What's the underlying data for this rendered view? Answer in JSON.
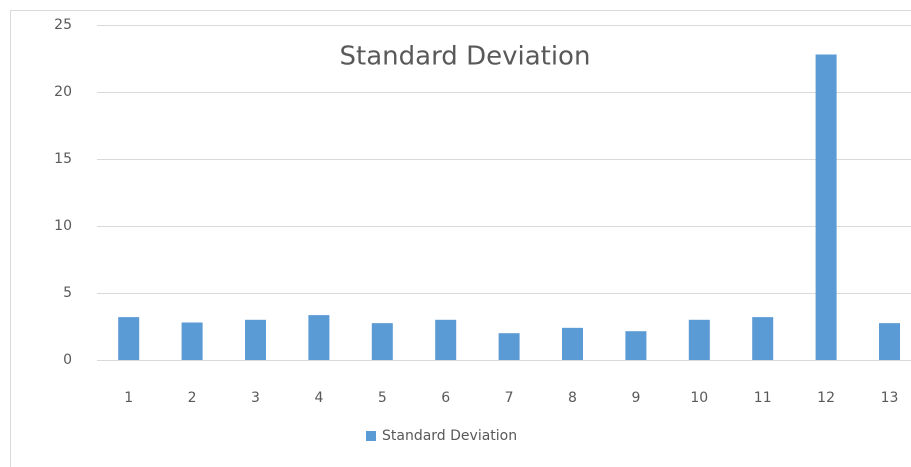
{
  "chart_data": {
    "type": "bar",
    "title": "Standard Deviation",
    "categories": [
      "1",
      "2",
      "3",
      "4",
      "5",
      "6",
      "7",
      "8",
      "9",
      "10",
      "11",
      "12",
      "13"
    ],
    "series": [
      {
        "name": "Standard Deviation",
        "color": "#5b9bd5",
        "values": [
          3.2,
          2.8,
          3.0,
          3.35,
          2.75,
          3.0,
          2.0,
          2.4,
          2.15,
          3.0,
          3.2,
          22.8,
          2.75
        ]
      }
    ],
    "ylim": [
      0,
      25
    ],
    "yticks": [
      0,
      5,
      10,
      15,
      20,
      25
    ],
    "grid": true,
    "legend": "bottom"
  }
}
